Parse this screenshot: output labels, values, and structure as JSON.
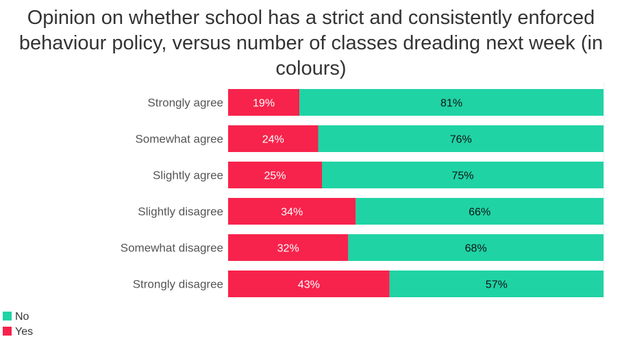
{
  "chart_data": {
    "type": "bar",
    "orientation": "horizontal",
    "stacked": true,
    "title_lines": [
      "Opinion on whether school has a strict and consistently enforced",
      "behaviour policy, versus number of classes dreading next week (in",
      "colours)"
    ],
    "categories": [
      "Strongly agree",
      "Somewhat agree",
      "Slightly agree",
      "Slightly disagree",
      "Somewhat disagree",
      "Strongly disagree"
    ],
    "series": [
      {
        "name": "Yes",
        "color": "#f7234c",
        "label_color": "#ffffff",
        "values": [
          19,
          24,
          25,
          34,
          32,
          43
        ]
      },
      {
        "name": "No",
        "color": "#1fd3a5",
        "label_color": "#111111",
        "values": [
          81,
          76,
          75,
          66,
          68,
          57
        ]
      }
    ],
    "value_suffix": "%",
    "xlim": [
      0,
      100
    ],
    "legend": {
      "position": "bottom-left",
      "items": [
        {
          "name": "No",
          "color": "#1fd3a5"
        },
        {
          "name": "Yes",
          "color": "#f7234c"
        }
      ]
    }
  }
}
